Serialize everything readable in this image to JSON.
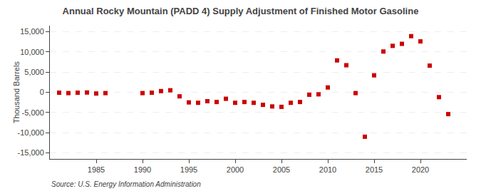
{
  "chart_data": {
    "type": "scatter",
    "title": "Annual Rocky Mountain (PADD 4) Supply Adjustment of Finished Motor Gasoline",
    "ylabel": "Thousand Barrels",
    "annotations": [
      "Source: U.S. Energy Information Administration"
    ],
    "x": [
      1981,
      1982,
      1983,
      1984,
      1985,
      1986,
      1990,
      1991,
      1992,
      1993,
      1994,
      1995,
      1996,
      1997,
      1998,
      1999,
      2000,
      2001,
      2002,
      2003,
      2004,
      2005,
      2006,
      2007,
      2008,
      2009,
      2010,
      2011,
      2012,
      2013,
      2014,
      2015,
      2016,
      2017,
      2018,
      2019,
      2020,
      2021,
      2022,
      2023
    ],
    "values": [
      -100,
      -200,
      -100,
      -50,
      -300,
      -200,
      -200,
      -100,
      300,
      500,
      -1000,
      -2500,
      -2600,
      -2200,
      -2400,
      -1600,
      -2600,
      -2400,
      -2600,
      -3100,
      -3500,
      -3600,
      -2600,
      -2400,
      -600,
      -500,
      1200,
      7900,
      6700,
      -200,
      -11000,
      4200,
      10100,
      11500,
      12000,
      13900,
      12600,
      6600,
      -1200,
      -5400
    ],
    "color": "#cc0000",
    "marker": "square",
    "xlim": [
      1980,
      2025
    ],
    "xticks": [
      1985,
      1990,
      1995,
      2000,
      2005,
      2010,
      2015,
      2020
    ],
    "ylim": [
      -16500,
      16500
    ],
    "yticks": [
      {
        "value": -15000,
        "label": "-15,000"
      },
      {
        "value": -10000,
        "label": "-10,000"
      },
      {
        "value": -5000,
        "label": "-5,000"
      },
      0,
      {
        "value": 5000,
        "label": "5,000"
      },
      {
        "value": 10000,
        "label": "10,000"
      },
      {
        "value": 15000,
        "label": "15,000"
      }
    ],
    "grid": "y"
  }
}
